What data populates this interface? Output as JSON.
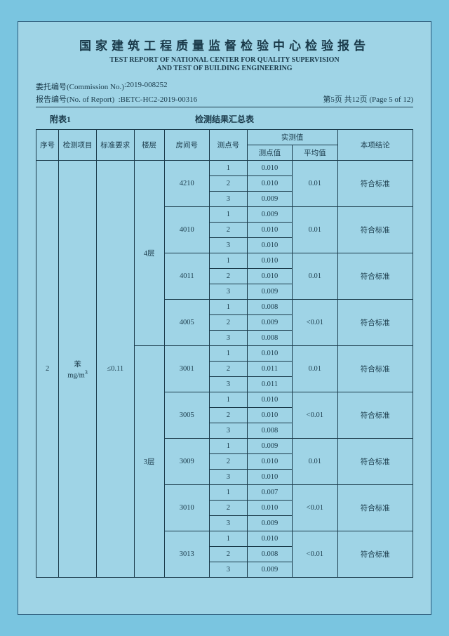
{
  "header": {
    "title_cn": "国家建筑工程质量监督检验中心检验报告",
    "title_en1": "TEST REPORT OF NATIONAL CENTER FOR QUALITY SUPERVISION",
    "title_en2": "AND TEST OF BUILDING ENGINEERING",
    "commission_label": "委托编号(Commission No.)",
    "commission_no": ":2019-008252",
    "report_label": "报告编号(No. of Report)",
    "report_no": ":BETC-HC2-2019-00316",
    "page_info": "第5页 共12页 (Page 5 of 12)"
  },
  "table_caption": {
    "appendix": "附表1",
    "title": "检测结果汇总表"
  },
  "columns": {
    "seq": "序号",
    "item": "检测项目",
    "requirement": "标准要求",
    "floor": "楼层",
    "room": "房间号",
    "point": "测点号",
    "measured": "实测值",
    "point_val": "测点值",
    "avg_val": "平均值",
    "conclusion": "本项结论"
  },
  "main": {
    "seq": "2",
    "item_name": "苯",
    "item_unit": "mg/m",
    "item_unit_sup": "3",
    "requirement": "≤0.11",
    "floors": [
      {
        "floor_label": "4层",
        "rooms": [
          {
            "room": "4210",
            "avg": "0.01",
            "concl": "符合标准",
            "points": [
              {
                "n": "1",
                "v": "0.010"
              },
              {
                "n": "2",
                "v": "0.010"
              },
              {
                "n": "3",
                "v": "0.009"
              }
            ]
          },
          {
            "room": "4010",
            "avg": "0.01",
            "concl": "符合标准",
            "points": [
              {
                "n": "1",
                "v": "0.009"
              },
              {
                "n": "2",
                "v": "0.010"
              },
              {
                "n": "3",
                "v": "0.010"
              }
            ]
          },
          {
            "room": "4011",
            "avg": "0.01",
            "concl": "符合标准",
            "points": [
              {
                "n": "1",
                "v": "0.010"
              },
              {
                "n": "2",
                "v": "0.010"
              },
              {
                "n": "3",
                "v": "0.009"
              }
            ]
          },
          {
            "room": "4005",
            "avg": "<0.01",
            "concl": "符合标准",
            "points": [
              {
                "n": "1",
                "v": "0.008"
              },
              {
                "n": "2",
                "v": "0.009"
              },
              {
                "n": "3",
                "v": "0.008"
              }
            ]
          }
        ]
      },
      {
        "floor_label": "3层",
        "rooms": [
          {
            "room": "3001",
            "avg": "0.01",
            "concl": "符合标准",
            "points": [
              {
                "n": "1",
                "v": "0.010"
              },
              {
                "n": "2",
                "v": "0.011"
              },
              {
                "n": "3",
                "v": "0.011"
              }
            ]
          },
          {
            "room": "3005",
            "avg": "<0.01",
            "concl": "符合标准",
            "points": [
              {
                "n": "1",
                "v": "0.010"
              },
              {
                "n": "2",
                "v": "0.010"
              },
              {
                "n": "3",
                "v": "0.008"
              }
            ]
          },
          {
            "room": "3009",
            "avg": "0.01",
            "concl": "符合标准",
            "points": [
              {
                "n": "1",
                "v": "0.009"
              },
              {
                "n": "2",
                "v": "0.010"
              },
              {
                "n": "3",
                "v": "0.010"
              }
            ]
          },
          {
            "room": "3010",
            "avg": "<0.01",
            "concl": "符合标准",
            "points": [
              {
                "n": "1",
                "v": "0.007"
              },
              {
                "n": "2",
                "v": "0.010"
              },
              {
                "n": "3",
                "v": "0.009"
              }
            ]
          },
          {
            "room": "3013",
            "avg": "<0.01",
            "concl": "符合标准",
            "points": [
              {
                "n": "1",
                "v": "0.010"
              },
              {
                "n": "2",
                "v": "0.008"
              },
              {
                "n": "3",
                "v": "0.009"
              }
            ]
          }
        ]
      }
    ]
  },
  "style": {
    "page_bg": "#9fd4e6",
    "body_bg": "#7ac5e0",
    "border_color": "#1a3a4a",
    "text_color": "#1a3a4a"
  }
}
